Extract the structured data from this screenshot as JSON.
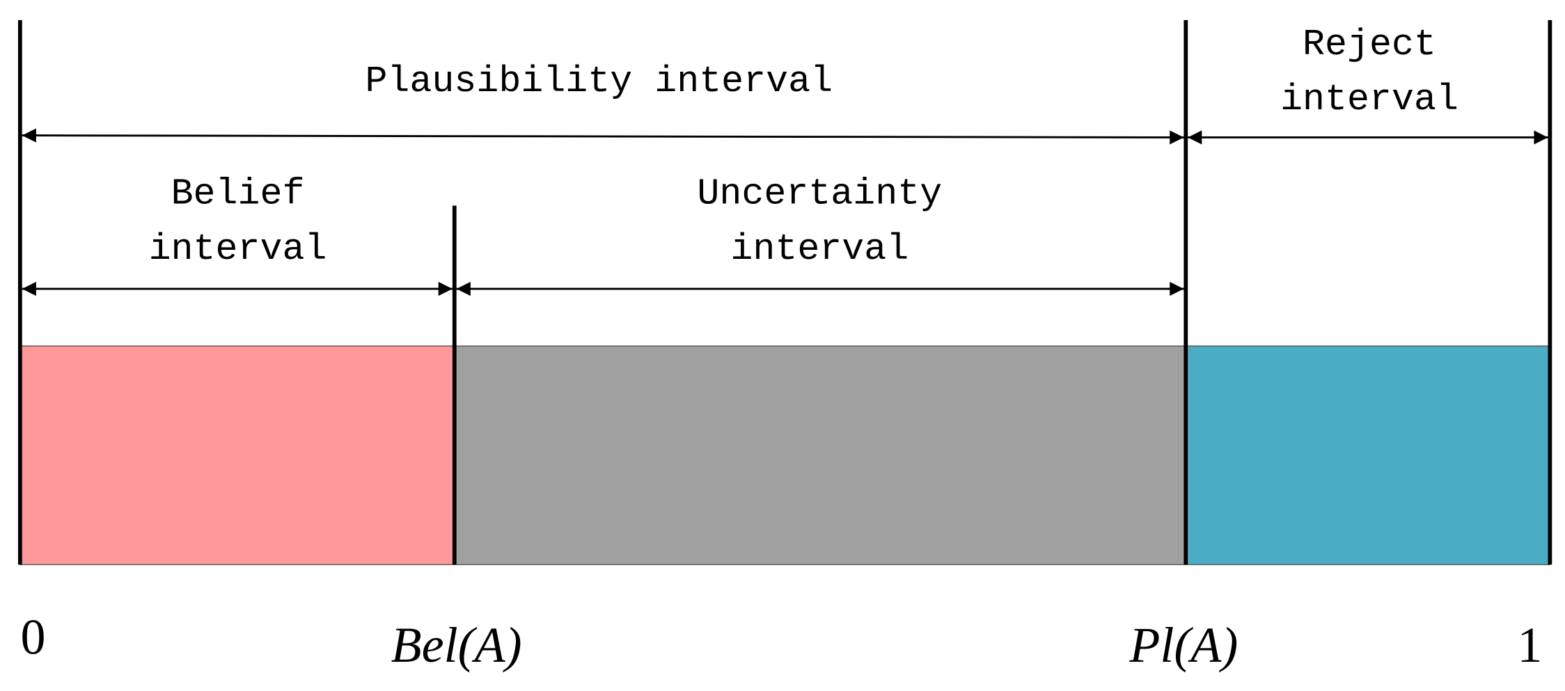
{
  "labels": {
    "plausibility": "Plausibility interval",
    "reject": [
      "Reject",
      "interval"
    ],
    "belief": [
      "Belief",
      "interval"
    ],
    "uncertainty": [
      "Uncertainty",
      "interval"
    ]
  },
  "axis": {
    "zero": "0",
    "bel": "Bel(A)",
    "pl": "Pl(A)",
    "one": "1"
  }
}
